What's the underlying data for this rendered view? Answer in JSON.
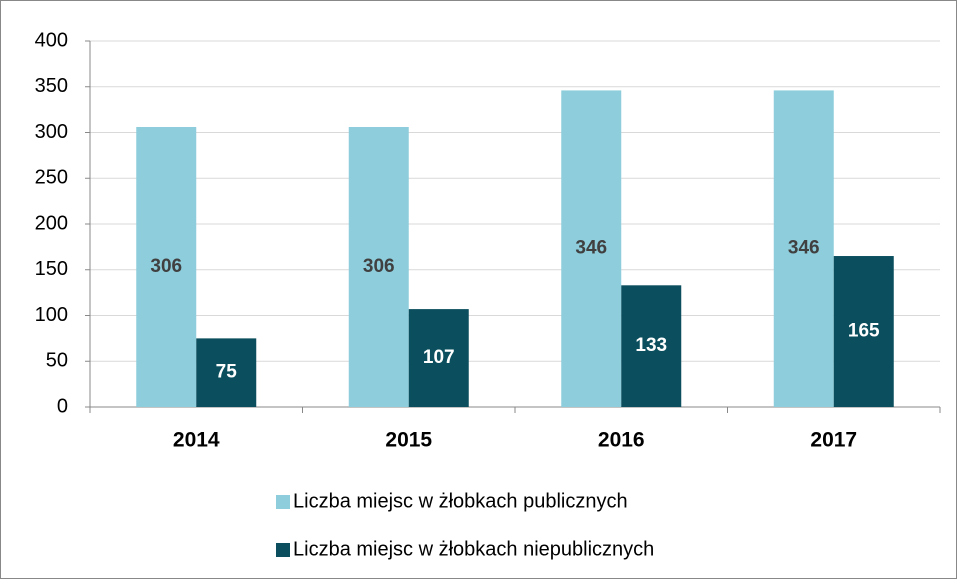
{
  "chart_data": {
    "type": "bar",
    "categories": [
      "2014",
      "2015",
      "2016",
      "2017"
    ],
    "series": [
      {
        "name": "Liczba miejsc w żłobkach publicznych",
        "color": "#8ecddc",
        "label_color": "#404040",
        "values": [
          306,
          306,
          346,
          346
        ]
      },
      {
        "name": "Liczba miejsc w żłobkach niepublicznych",
        "color": "#0b4f5e",
        "label_color": "#ffffff",
        "values": [
          75,
          107,
          133,
          165
        ]
      }
    ],
    "ylim": [
      0,
      400
    ],
    "yticks": [
      0,
      50,
      100,
      150,
      200,
      250,
      300,
      350,
      400
    ],
    "grid": true
  }
}
